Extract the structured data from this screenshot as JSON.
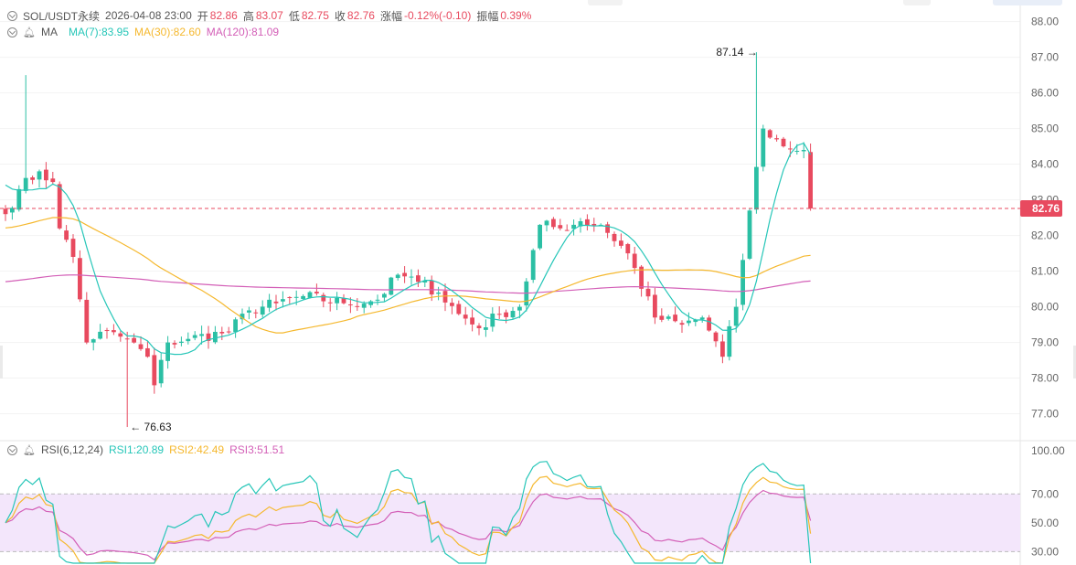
{
  "header": {
    "symbol": "SOL/USDT永续",
    "datetime": "2026-04-08 23:00",
    "open_label": "开",
    "open": "82.86",
    "high_label": "高",
    "high": "83.07",
    "low_label": "低",
    "low": "82.75",
    "close_label": "收",
    "close": "82.76",
    "change_label": "涨幅",
    "change": "-0.12%(-0.10)",
    "amplitude_label": "振幅",
    "amplitude": "0.39%"
  },
  "ma_legend": {
    "name": "MA",
    "ma7": "MA(7):83.95",
    "ma30": "MA(30):82.60",
    "ma120": "MA(120):81.09"
  },
  "rsi_legend": {
    "name": "RSI(6,12,24)",
    "rsi1": "RSI1:20.89",
    "rsi2": "RSI2:42.49",
    "rsi3": "RSI3:51.51"
  },
  "colors": {
    "up": "#2bbfa4",
    "down": "#e84a5f",
    "ma7": "#26c6b8",
    "ma30": "#f5b82e",
    "ma120": "#d35fb7",
    "rsi1": "#26c6b8",
    "rsi2": "#f5b82e",
    "rsi3": "#d35fb7",
    "rsi_band": "#f3e6fb"
  },
  "chart_data": [
    {
      "type": "candlestick",
      "title": "SOL/USDT永续",
      "y_axis_ticks": [
        "88.00",
        "87.00",
        "86.00",
        "85.00",
        "84.00",
        "83.00",
        "82.00",
        "81.00",
        "80.00",
        "79.00",
        "78.00",
        "77.00"
      ],
      "ylim": [
        76.4,
        88.4
      ],
      "last_price": 82.76,
      "last_price_label": "82.76",
      "high_annotation": "87.14 →",
      "high_value": 87.14,
      "low_annotation": "← 76.63",
      "low_value": 76.63,
      "n_candles": 120,
      "keypoints": [
        [
          0,
          82.6
        ],
        [
          2,
          83.3
        ],
        [
          5,
          83.8
        ],
        [
          7,
          83.5
        ],
        [
          8,
          82.2
        ],
        [
          10,
          81.4
        ],
        [
          12,
          79.0
        ],
        [
          14,
          79.3
        ],
        [
          18,
          79.1
        ],
        [
          21,
          78.6
        ],
        [
          22,
          77.8
        ],
        [
          24,
          79.0
        ],
        [
          27,
          79.1
        ],
        [
          33,
          79.3
        ],
        [
          36,
          79.9
        ],
        [
          40,
          80.1
        ],
        [
          44,
          80.3
        ],
        [
          50,
          80.1
        ],
        [
          55,
          80.2
        ],
        [
          58,
          80.9
        ],
        [
          61,
          80.7
        ],
        [
          64,
          80.4
        ],
        [
          67,
          79.8
        ],
        [
          70,
          79.4
        ],
        [
          73,
          79.8
        ],
        [
          76,
          80.0
        ],
        [
          79,
          82.3
        ],
        [
          82,
          82.2
        ],
        [
          85,
          82.4
        ],
        [
          88,
          82.3
        ],
        [
          92,
          81.5
        ],
        [
          96,
          79.7
        ],
        [
          100,
          79.5
        ],
        [
          103,
          79.7
        ],
        [
          106,
          78.6
        ],
        [
          108,
          80.0
        ],
        [
          110,
          82.7
        ],
        [
          112,
          85.0
        ],
        [
          115,
          84.5
        ],
        [
          118,
          84.4
        ],
        [
          119,
          82.76
        ]
      ],
      "spikes": [
        {
          "i": 3,
          "high": 86.5
        },
        {
          "i": 18,
          "low": 76.63
        },
        {
          "i": 111,
          "high": 87.14
        }
      ],
      "series": [
        {
          "name": "MA(7)",
          "period": 7,
          "value": 83.95
        },
        {
          "name": "MA(30)",
          "period": 30,
          "value": 82.6
        },
        {
          "name": "MA(120)",
          "period": 120,
          "value": 81.09
        }
      ]
    },
    {
      "type": "line",
      "title": "RSI(6,12,24)",
      "y_axis_ticks": [
        "100.00",
        "70.00",
        "50.00",
        "30.00"
      ],
      "ylim": [
        22,
        100
      ],
      "band": [
        30,
        70
      ],
      "series": [
        {
          "name": "RSI1",
          "period": 6,
          "value": 20.89
        },
        {
          "name": "RSI2",
          "period": 12,
          "value": 42.49
        },
        {
          "name": "RSI3",
          "period": 24,
          "value": 51.51
        }
      ]
    }
  ]
}
